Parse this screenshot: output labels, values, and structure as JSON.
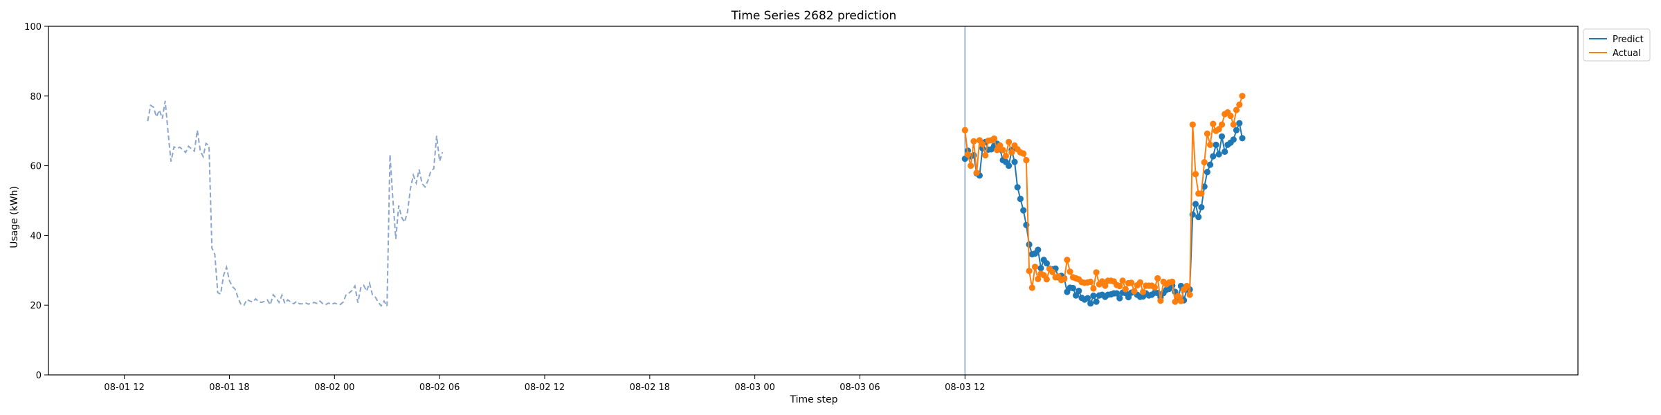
{
  "chart_data": {
    "type": "line",
    "title": "Time Series 2682 prediction",
    "xlabel": "Time step",
    "ylabel": "Usage (kWh)",
    "ylim": [
      0,
      100
    ],
    "yticks": [
      0,
      20,
      40,
      60,
      80,
      100
    ],
    "xlim": [
      -13,
      249
    ],
    "x_unit": "10 min steps from 08-01 12:00",
    "xticks": [
      {
        "x": 0,
        "label": "08-01 12"
      },
      {
        "x": 36,
        "label": "08-01 18"
      },
      {
        "x": 72,
        "label": "08-02 00"
      },
      {
        "x": 108,
        "label": "08-02 06"
      },
      {
        "x": 144,
        "label": "08-02 12"
      },
      {
        "x": 180,
        "label": "08-02 18"
      },
      {
        "x": 216,
        "label": "08-03 00"
      },
      {
        "x": 252,
        "label": "08-03 06"
      },
      {
        "x": 288,
        "label": "08-03 12"
      }
    ],
    "forecast_start_x": 144,
    "legend": {
      "position": "top-right",
      "entries": [
        "Predict",
        "Actual"
      ]
    },
    "colors": {
      "history": "#8aa6cc",
      "predict": "#1f77b4",
      "actual": "#ff7f0e",
      "divider": "#7f9fd0"
    },
    "series": [
      {
        "name": "history",
        "style": "dashed",
        "start_x": 4,
        "values": [
          72.8,
          77.3,
          76.8,
          74.0,
          76.0,
          73.5,
          78.6,
          69.5,
          61.2,
          65.4,
          65.0,
          65.3,
          64.6,
          63.8,
          65.6,
          64.8,
          64.2,
          70.2,
          64.4,
          62.6,
          66.4,
          65.8,
          36.4,
          34.6,
          23.6,
          23.2,
          28.6,
          30.9,
          27.0,
          25.4,
          24.5,
          22.0,
          20.1,
          20.0,
          21.6,
          21.2,
          20.9,
          21.8,
          21.0,
          20.8,
          21.1,
          21.5,
          20.1,
          23.0,
          22.0,
          20.8,
          22.9,
          20.5,
          21.5,
          20.9,
          20.4,
          21.1,
          20.4,
          20.4,
          20.7,
          20.3,
          20.5,
          20.8,
          20.5,
          21.2,
          20.4,
          20.2,
          20.6,
          20.2,
          20.6,
          20.3,
          20.2,
          20.9,
          23.1,
          23.5,
          24.2,
          25.5,
          20.7,
          25.0,
          25.7,
          24.0,
          26.3,
          23.0,
          22.3,
          20.8,
          19.8,
          21.2,
          19.7,
          63.2,
          50.3,
          39.0,
          48.6,
          45.2,
          43.8,
          46.7,
          53.4,
          57.3,
          55.0,
          58.9,
          54.9,
          53.9,
          55.7,
          58.5,
          59.1,
          68.6,
          61.3,
          63.9
        ]
      },
      {
        "name": "Predict",
        "start_x": 144,
        "values": [
          62.0,
          64.3,
          62.7,
          63.0,
          57.8,
          57.2,
          65.0,
          66.8,
          64.6,
          64.7,
          65.7,
          66.3,
          64.7,
          61.6,
          61.1,
          60.0,
          64.5,
          61.1,
          53.8,
          50.5,
          47.2,
          43.0,
          37.4,
          34.6,
          34.8,
          35.9,
          30.6,
          33.0,
          32.0,
          30.5,
          30.3,
          30.5,
          28.0,
          28.4,
          27.7,
          23.8,
          25.0,
          24.9,
          22.8,
          24.1,
          22.1,
          21.6,
          22.0,
          20.5,
          22.7,
          21.0,
          22.8,
          23.0,
          22.4,
          23.0,
          23.1,
          23.4,
          23.4,
          22.0,
          23.6,
          23.5,
          22.3,
          23.6,
          24.0,
          23.0,
          22.4,
          22.5,
          23.4,
          22.8,
          23.0,
          23.6,
          23.5,
          22.3,
          23.5,
          24.4,
          24.7,
          25.7,
          23.8,
          21.8,
          25.5,
          21.4,
          24.5,
          24.5,
          46.0,
          49.0,
          45.3,
          48.1,
          54.0,
          58.2,
          60.3,
          62.7,
          66.0,
          63.3,
          68.4,
          64.0,
          66.0,
          66.6,
          67.5,
          70.2,
          72.2,
          67.9
        ]
      },
      {
        "name": "Actual",
        "start_x": 144,
        "values": [
          70.2,
          63.2,
          60.0,
          67.0,
          58.0,
          67.3,
          66.2,
          63.0,
          67.2,
          67.3,
          67.8,
          64.5,
          65.8,
          64.5,
          62.8,
          66.8,
          63.8,
          65.8,
          64.7,
          63.8,
          63.5,
          61.6,
          29.8,
          25.0,
          31.0,
          27.5,
          29.0,
          28.6,
          27.4,
          30.4,
          29.5,
          28.0,
          28.2,
          27.2,
          27.5,
          33.0,
          29.6,
          28.0,
          27.7,
          27.4,
          26.6,
          26.4,
          26.5,
          26.7,
          24.8,
          29.4,
          26.0,
          26.8,
          25.6,
          27.0,
          27.0,
          26.8,
          25.8,
          25.5,
          27.0,
          24.6,
          26.3,
          26.4,
          24.0,
          25.7,
          26.5,
          23.8,
          25.6,
          25.6,
          25.6,
          25.1,
          27.7,
          21.3,
          26.7,
          26.0,
          26.5,
          26.7,
          21.0,
          22.6,
          21.2,
          24.5,
          25.5,
          23.0,
          71.8,
          57.6,
          52.0,
          52.0,
          61.0,
          69.2,
          66.0,
          72.0,
          70.0,
          70.5,
          71.8,
          74.8,
          75.3,
          74.3,
          71.8,
          76.0,
          77.5,
          80.0
        ]
      }
    ]
  }
}
